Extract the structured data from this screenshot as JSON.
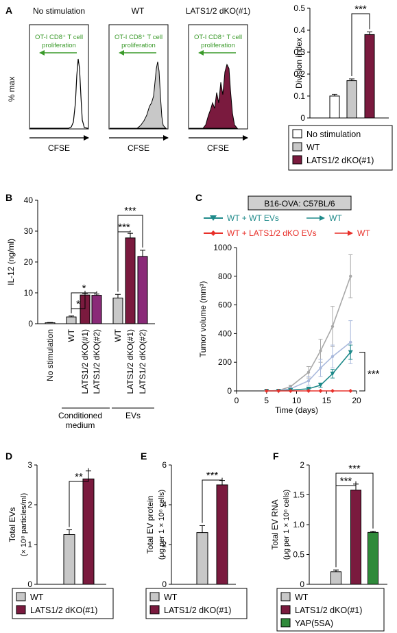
{
  "colors": {
    "white": "#ffffff",
    "gray": "#c8c8c8",
    "maroon": "#7a1a3e",
    "purple": "#8a2a78",
    "teal": "#1f8a8a",
    "red": "#e8302a",
    "lightblue": "#a9b9dc",
    "lightgray": "#a8a8a8",
    "green": "#2f8a3a",
    "arrowGreen": "#3a9a2a"
  },
  "panelA": {
    "letter": "A",
    "ylabel": "% max",
    "xlabel": "CFSE",
    "annotation1": "OT-I CD8⁺ T cell",
    "annotation2": "proliferation",
    "histograms": [
      {
        "title": "No stimulation"
      },
      {
        "title": "WT"
      },
      {
        "title": "LATS1/2 dKO(#1)"
      }
    ]
  },
  "panelB": {
    "letter": "B",
    "group1": "Conditioned",
    "group1b": "medium",
    "group2": "EVs"
  },
  "panelC": {
    "letter": "C",
    "boxlabel": "B16-OVA: C57BL/6",
    "legend1": "WT + WT EVs",
    "legend1b": "WT",
    "legend2": "WT + LATS1/2 dKO EVs",
    "legend2b": "WT",
    "sig": "***"
  },
  "panelD": {
    "letter": "D"
  },
  "panelE": {
    "letter": "E"
  },
  "panelF": {
    "letter": "F"
  },
  "chart_data": [
    {
      "id": "A-bar",
      "type": "bar",
      "categories": [
        "No stimulation",
        "WT",
        "LATS1/2 dKO(#1)"
      ],
      "values": [
        0.1,
        0.17,
        0.38
      ],
      "errors": [
        0.008,
        0.008,
        0.012
      ],
      "colors": [
        "#ffffff",
        "#c8c8c8",
        "#7a1a3e"
      ],
      "ylabel": "Division index",
      "ylim": [
        0,
        0.5
      ],
      "yticks": [
        "0",
        "0.1",
        "0.2",
        "0.3",
        "0.4",
        "0.5"
      ],
      "sig": [
        {
          "from": 1,
          "to": 2,
          "label": "***"
        }
      ],
      "legend": [
        "No stimulation",
        "WT",
        "LATS1/2 dKO(#1)"
      ]
    },
    {
      "id": "B",
      "type": "bar",
      "categories": [
        "No stimulation",
        "WT",
        "LATS1/2 dKO(#1)",
        "LATS1/2 dKO(#2)",
        "WT",
        "LATS1/2 dKO(#1)",
        "LATS1/2 dKO(#2)"
      ],
      "values": [
        0.3,
        2.2,
        9.3,
        9.2,
        8.3,
        27.8,
        21.8
      ],
      "errors": [
        0.1,
        0.3,
        0.5,
        0.4,
        1.2,
        1.5,
        2.0
      ],
      "colors": [
        "#ffffff",
        "#c8c8c8",
        "#7a1a3e",
        "#8a2a78",
        "#c8c8c8",
        "#7a1a3e",
        "#8a2a78"
      ],
      "ylabel": "IL-12 (ng/ml)",
      "ylim": [
        0,
        40
      ],
      "yticks": [
        "0",
        "10",
        "20",
        "30",
        "40"
      ],
      "sig": [
        {
          "from": 1,
          "to": 2,
          "label": "*"
        },
        {
          "from": 1,
          "to": 3,
          "label": "*"
        },
        {
          "from": 4,
          "to": 5,
          "label": "***"
        },
        {
          "from": 4,
          "to": 6,
          "label": "***"
        }
      ]
    },
    {
      "id": "C",
      "type": "line",
      "xlabel": "Time (days)",
      "ylabel": "Tumor volume (mm³)",
      "xlim": [
        0,
        20
      ],
      "ylim": [
        0,
        1000
      ],
      "xticks": [
        "0",
        "5",
        "10",
        "15",
        "20"
      ],
      "yticks": [
        "0",
        "200",
        "400",
        "600",
        "800",
        "1000"
      ],
      "x": [
        5,
        7,
        9,
        12,
        14,
        16,
        19
      ],
      "series": [
        {
          "values": [
            0,
            3,
            30,
            130,
            280,
            450,
            800
          ],
          "errors": [
            0,
            5,
            10,
            40,
            80,
            140,
            150
          ],
          "color": "#a8a8a8"
        },
        {
          "values": [
            0,
            2,
            15,
            70,
            160,
            240,
            340
          ],
          "errors": [
            0,
            3,
            8,
            30,
            60,
            80,
            150
          ],
          "color": "#a9b9dc"
        },
        {
          "name": "WT + WT EVs → WT",
          "values": [
            0,
            0,
            5,
            15,
            40,
            120,
            270
          ],
          "errors": [
            0,
            0,
            3,
            8,
            15,
            30,
            50
          ],
          "color": "#1f8a8a"
        },
        {
          "name": "WT + LATS1/2 dKO EVs → WT",
          "values": [
            0,
            0,
            0,
            0,
            0,
            0,
            0
          ],
          "errors": [
            0,
            0,
            0,
            0,
            0,
            0,
            0
          ],
          "color": "#e8302a"
        }
      ]
    },
    {
      "id": "D",
      "type": "bar",
      "categories": [
        "WT",
        "LATS1/2 dKO(#1)"
      ],
      "values": [
        1.25,
        2.65
      ],
      "errors": [
        0.12,
        0.2
      ],
      "colors": [
        "#c8c8c8",
        "#7a1a3e"
      ],
      "ylabel": "Total EVs",
      "ylabel2": "(× 10⁸ particles/ml)",
      "ylim": [
        0,
        3
      ],
      "yticks": [
        "0",
        "1",
        "2",
        "3"
      ],
      "sig": [
        {
          "from": 0,
          "to": 1,
          "label": "**"
        }
      ],
      "legend": [
        "WT",
        "LATS1/2 dKO(#1)"
      ]
    },
    {
      "id": "E",
      "type": "bar",
      "categories": [
        "WT",
        "LATS1/2 dKO(#1)"
      ],
      "values": [
        2.6,
        5.0
      ],
      "errors": [
        0.35,
        0.22
      ],
      "colors": [
        "#c8c8c8",
        "#7a1a3e"
      ],
      "ylabel": "Total EV protein",
      "ylabel2": "(μg per 1 × 10⁶ cells)",
      "ylim": [
        0,
        6
      ],
      "yticks": [
        "0",
        "2",
        "4",
        "6"
      ],
      "sig": [
        {
          "from": 0,
          "to": 1,
          "label": "***"
        }
      ],
      "legend": [
        "WT",
        "LATS1/2 dKO(#1)"
      ]
    },
    {
      "id": "F",
      "type": "bar",
      "categories": [
        "WT",
        "LATS1/2 dKO(#1)",
        "YAP(5SA)"
      ],
      "values": [
        0.21,
        1.58,
        0.87
      ],
      "errors": [
        0.03,
        0.1,
        0.02
      ],
      "colors": [
        "#c8c8c8",
        "#7a1a3e",
        "#2f8a3a"
      ],
      "ylabel": "Total EV RNA",
      "ylabel2": "(μg per 1 × 10⁶ cells)",
      "ylim": [
        0,
        2
      ],
      "yticks": [
        "0",
        "0.5",
        "1.0",
        "1.5",
        "2"
      ],
      "sig": [
        {
          "from": 0,
          "to": 1,
          "label": "***"
        },
        {
          "from": 0,
          "to": 2,
          "label": "***"
        }
      ],
      "legend": [
        "WT",
        "LATS1/2 dKO(#1)",
        "YAP(5SA)"
      ]
    }
  ]
}
